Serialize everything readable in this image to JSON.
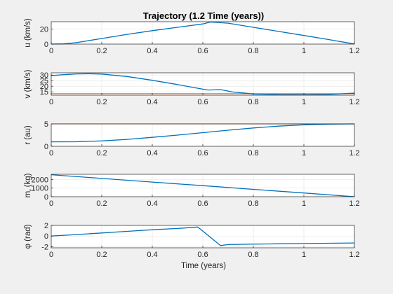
{
  "title": "Trajectory (1.2 Time (years))",
  "xlabel": "Time (years)",
  "colors": {
    "series": "#0072BD",
    "reference": "#D95319",
    "axes_bg": "#ffffff",
    "figure_bg": "#f0f0f0",
    "grid": "#e3e3e3"
  },
  "chart_data": [
    {
      "type": "line",
      "ylabel": "u (km/s)",
      "xlim": [
        0,
        1.2
      ],
      "ylim": [
        0,
        30
      ],
      "xticks": [
        0,
        0.2,
        0.4,
        0.6,
        0.8,
        1,
        1.2
      ],
      "xtick_labels": [
        "0",
        "0.2",
        "0.4",
        "0.6",
        "0.8",
        "1",
        "1.2"
      ],
      "yticks": [
        0,
        20
      ],
      "ytick_labels": [
        "0",
        "20"
      ],
      "grid": true,
      "series": [
        {
          "x": [
            0,
            0.05,
            0.1,
            0.2,
            0.3,
            0.4,
            0.5,
            0.6,
            0.63,
            0.7,
            0.8,
            0.9,
            1.0,
            1.1,
            1.2
          ],
          "y": [
            0,
            0.3,
            2,
            7.5,
            13,
            18,
            22.5,
            27,
            29.5,
            28,
            22.5,
            17,
            11.5,
            6,
            0.2
          ]
        }
      ]
    },
    {
      "type": "line",
      "ylabel": "v (km/s)",
      "xlim": [
        0,
        1.2
      ],
      "ylim": [
        12,
        32
      ],
      "xticks": [
        0,
        0.2,
        0.4,
        0.6,
        0.8,
        1,
        1.2
      ],
      "xtick_labels": [
        "0",
        "0.2",
        "0.4",
        "0.6",
        "0.8",
        "1",
        "1.2"
      ],
      "yticks": [
        15,
        20,
        25,
        30
      ],
      "ytick_labels": [
        "15",
        "20",
        "25",
        "30"
      ],
      "grid": true,
      "reference_line": {
        "y": 13.3
      },
      "series": [
        {
          "x": [
            0,
            0.05,
            0.1,
            0.15,
            0.2,
            0.3,
            0.4,
            0.5,
            0.6,
            0.62,
            0.67,
            0.72,
            0.8,
            0.9,
            1.0,
            1.1,
            1.2
          ],
          "y": [
            29.5,
            30.3,
            31.0,
            31.2,
            30.9,
            28.7,
            25.3,
            21.5,
            17.4,
            16.6,
            17.0,
            14.8,
            13.1,
            12.5,
            12.4,
            12.7,
            13.9
          ]
        }
      ]
    },
    {
      "type": "line",
      "ylabel": "r (au)",
      "xlim": [
        0,
        1.2
      ],
      "ylim": [
        0,
        5
      ],
      "xticks": [
        0,
        0.2,
        0.4,
        0.6,
        0.8,
        1,
        1.2
      ],
      "xtick_labels": [
        "0",
        "0.2",
        "0.4",
        "0.6",
        "0.8",
        "1",
        "1.2"
      ],
      "yticks": [
        0,
        5
      ],
      "ytick_labels": [
        "0",
        "5"
      ],
      "grid": true,
      "reference_line": {
        "y": 5.0
      },
      "series": [
        {
          "x": [
            0,
            0.1,
            0.2,
            0.3,
            0.4,
            0.5,
            0.6,
            0.7,
            0.8,
            0.9,
            1.0,
            1.1,
            1.2
          ],
          "y": [
            1.0,
            1.02,
            1.2,
            1.55,
            2.0,
            2.5,
            3.05,
            3.6,
            4.1,
            4.5,
            4.8,
            4.95,
            5.0
          ]
        }
      ]
    },
    {
      "type": "line",
      "ylabel": "m_f (kg)",
      "xlim": [
        0,
        1.2
      ],
      "ylim": [
        0,
        2600
      ],
      "xticks": [
        0,
        0.2,
        0.4,
        0.6,
        0.8,
        1,
        1.2
      ],
      "xtick_labels": [
        "0",
        "0.2",
        "0.4",
        "0.6",
        "0.8",
        "1",
        "1.2"
      ],
      "yticks": [
        0,
        1000,
        2000
      ],
      "ytick_labels": [
        "0",
        "1000",
        "2000"
      ],
      "grid": true,
      "series": [
        {
          "x": [
            0,
            0.2,
            0.4,
            0.6,
            0.8,
            1.0,
            1.2
          ],
          "y": [
            2550,
            2120,
            1700,
            1280,
            850,
            430,
            0
          ]
        }
      ]
    },
    {
      "type": "line",
      "ylabel": "φ (rad)",
      "xlim": [
        0,
        1.2
      ],
      "ylim": [
        -2.2,
        2
      ],
      "xticks": [
        0,
        0.2,
        0.4,
        0.6,
        0.8,
        1,
        1.2
      ],
      "xtick_labels": [
        "0",
        "0.2",
        "0.4",
        "0.6",
        "0.8",
        "1",
        "1.2"
      ],
      "yticks": [
        -2,
        0,
        2
      ],
      "ytick_labels": [
        "-2",
        "0",
        "2"
      ],
      "grid": true,
      "series": [
        {
          "x": [
            0,
            0.1,
            0.2,
            0.3,
            0.4,
            0.5,
            0.58,
            0.67,
            0.7,
            0.8,
            0.9,
            1.0,
            1.1,
            1.2
          ],
          "y": [
            0,
            0.28,
            0.58,
            0.88,
            1.18,
            1.42,
            1.7,
            -1.78,
            -1.6,
            -1.5,
            -1.45,
            -1.4,
            -1.35,
            -1.3
          ]
        }
      ]
    }
  ]
}
